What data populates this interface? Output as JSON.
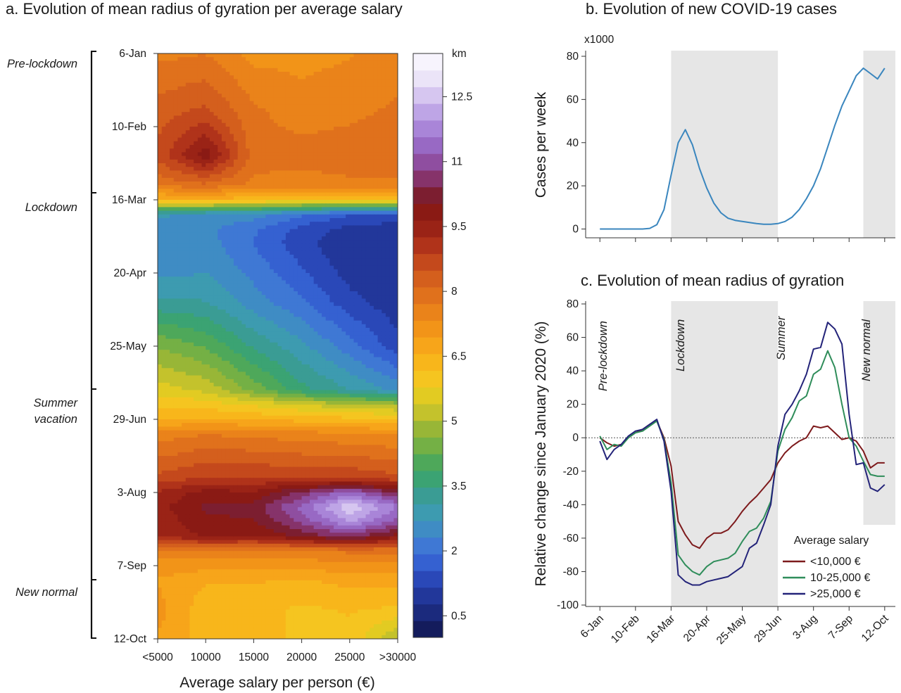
{
  "chart_data": [
    {
      "id": "a",
      "type": "heatmap",
      "title": "a. Evolution of mean radius of gyration per average salary",
      "xlabel": "Average salary per person (€)",
      "x_ticks": [
        "<5000",
        "10000",
        "15000",
        "20000",
        "25000",
        ">30000"
      ],
      "x_values": [
        5000,
        10000,
        15000,
        20000,
        25000,
        30000
      ],
      "xlim": [
        5000,
        30000
      ],
      "y_ticks": [
        "6-Jan",
        "10-Feb",
        "16-Mar",
        "20-Apr",
        "25-May",
        "29-Jun",
        "3-Aug",
        "7-Sep",
        "12-Oct"
      ],
      "periods": [
        {
          "label": "Pre-lockdown",
          "from_week": 0,
          "to_week": 10
        },
        {
          "label": "Lockdown",
          "from_week": 10,
          "to_week": 25
        },
        {
          "label": "Summer vacation",
          "from_week": 25,
          "to_week": 34
        },
        {
          "label": "New normal",
          "from_week": 34,
          "to_week": 40
        }
      ],
      "colorbar": {
        "unit": "km",
        "ticks": [
          0.5,
          2,
          3.5,
          5,
          6.5,
          8,
          9.5,
          11,
          12.5
        ],
        "range": [
          0,
          13.5
        ],
        "colors": [
          "#141c5c",
          "#1b2a7d",
          "#22379a",
          "#2a48b8",
          "#3561d1",
          "#3f78d4",
          "#3f8cc4",
          "#3d9bb0",
          "#3a9c94",
          "#3ba373",
          "#4ea85a",
          "#74b045",
          "#98b637",
          "#c4c22c",
          "#e2cb22",
          "#f5c520",
          "#f8b61b",
          "#f7a51a",
          "#f29418",
          "#ea831a",
          "#e0711c",
          "#d45f1d",
          "#c4491c",
          "#b0331a",
          "#9a2316",
          "#8a1a14",
          "#7c1e30",
          "#86336a",
          "#8f4ea0",
          "#9869c4",
          "#a985d8",
          "#bea5e6",
          "#d6c6f0",
          "#ebe4f8",
          "#f7f4fd"
        ]
      },
      "weekly_profiles": {
        "weeks": [
          0,
          4,
          7,
          9,
          10,
          11,
          12,
          13,
          15,
          17,
          20,
          23,
          24,
          25,
          26,
          29,
          30,
          31,
          32,
          33,
          34,
          36,
          38,
          40
        ],
        "values_by_salary": [
          [
            7.6,
            8.3,
            8.6,
            7.8,
            6.4,
            2.8,
            2.4,
            2.5,
            2.6,
            3.2,
            4.6,
            5.6,
            6.1,
            6.5,
            7.5,
            8.6,
            9.3,
            9.5,
            9.4,
            9.3,
            7.5,
            6.9,
            7.1,
            6.9
          ],
          [
            7.7,
            8.6,
            9.9,
            8.0,
            6.5,
            2.6,
            2.4,
            2.5,
            2.7,
            3.1,
            4.2,
            5.3,
            6.0,
            6.6,
            7.7,
            8.9,
            9.8,
            10.1,
            9.9,
            9.7,
            7.6,
            6.6,
            6.3,
            6.4
          ],
          [
            7.2,
            7.8,
            7.9,
            7.6,
            6.3,
            2.5,
            2.0,
            1.9,
            2.2,
            2.5,
            3.4,
            4.5,
            5.7,
            6.5,
            7.6,
            8.9,
            9.7,
            10.2,
            10.0,
            9.6,
            7.6,
            6.6,
            6.3,
            6.3
          ],
          [
            7.2,
            7.5,
            7.9,
            7.5,
            6.2,
            2.0,
            1.4,
            1.3,
            1.6,
            2.0,
            2.8,
            3.6,
            5.4,
            6.4,
            7.5,
            8.8,
            10.5,
            11.3,
            10.9,
            10.1,
            7.6,
            6.5,
            6.1,
            6.1
          ],
          [
            7.3,
            7.6,
            8.0,
            7.6,
            6.2,
            1.6,
            1.0,
            0.8,
            1.0,
            1.3,
            2.1,
            3.1,
            5.1,
            6.3,
            7.4,
            8.8,
            11.4,
            12.7,
            12.0,
            10.6,
            7.8,
            6.7,
            6.2,
            6.1
          ],
          [
            7.5,
            7.8,
            8.1,
            7.6,
            6.1,
            1.5,
            0.9,
            0.8,
            0.8,
            0.9,
            1.3,
            2.6,
            4.9,
            6.2,
            7.3,
            8.6,
            10.3,
            11.6,
            11.0,
            9.8,
            7.8,
            6.7,
            6.1,
            5.0
          ]
        ]
      }
    },
    {
      "id": "b",
      "type": "line",
      "title": "b. Evolution of new COVID-19 cases",
      "ylabel": "Cases per week",
      "y_multiplier": "x1000",
      "ylim": [
        0,
        80
      ],
      "y_ticks": [
        0,
        20,
        40,
        60,
        80
      ],
      "xlim": [
        -2,
        41.5
      ],
      "shaded_weeks": [
        [
          10,
          25
        ],
        [
          37,
          41.5
        ]
      ],
      "series": [
        {
          "color": "#3a86be",
          "x": [
            0,
            2,
            4,
            6,
            7,
            8,
            9,
            10,
            11,
            12,
            13,
            14,
            15,
            16,
            17,
            18,
            19,
            20,
            21,
            22,
            23,
            24,
            25,
            26,
            27,
            28,
            29,
            30,
            31,
            32,
            33,
            34,
            35,
            36,
            37,
            38,
            39,
            40
          ],
          "values": [
            0,
            0,
            0,
            0,
            0.3,
            2,
            9,
            25,
            40,
            46,
            39,
            28,
            19,
            12,
            7.5,
            5,
            4,
            3.5,
            3,
            2.5,
            2.2,
            2.2,
            2.5,
            3.5,
            5.5,
            9,
            14,
            20,
            28,
            38,
            48,
            57,
            64,
            71,
            74.5,
            72,
            69.5,
            74.5
          ]
        }
      ]
    },
    {
      "id": "c",
      "type": "line",
      "title": "c. Evolution of mean radius of gyration",
      "ylabel": "Relative change since January 2020 (%)",
      "ylim": [
        -100,
        80
      ],
      "y_ticks": [
        -100,
        -80,
        -60,
        -40,
        -20,
        0,
        20,
        40,
        60,
        80
      ],
      "xlim": [
        -2,
        41.5
      ],
      "x_ticks": [
        "6-Jan",
        "10-Feb",
        "16-Mar",
        "20-Apr",
        "25-May",
        "29-Jun",
        "3-Aug",
        "7-Sep",
        "12-Oct"
      ],
      "shaded_weeks": [
        [
          10,
          25
        ],
        [
          37,
          41.5
        ]
      ],
      "zero_line": true,
      "periods": [
        "Pre-lockdown",
        "Lockdown",
        "Summer",
        "New normal"
      ],
      "legend": {
        "title": "Average salary",
        "position": "bottom-right"
      },
      "series": [
        {
          "name": "<10,000 €",
          "color": "#7d1a1c",
          "values": [
            0,
            -3,
            -5,
            -4,
            0,
            3,
            5,
            8,
            10,
            0,
            -17,
            -50,
            -58,
            -64,
            -66,
            -60,
            -57,
            -57,
            -55,
            -50,
            -44,
            -39,
            -35,
            -30,
            -25,
            -15,
            -9,
            -5,
            -2,
            0,
            7,
            6,
            7,
            3,
            -1,
            0,
            -2,
            -8,
            -18,
            -15,
            -15
          ]
        },
        {
          "name": "10-25,000 €",
          "color": "#2f8d5a",
          "values": [
            1,
            -7,
            -4,
            -5,
            0,
            3,
            4,
            7,
            10,
            -1,
            -27,
            -70,
            -76,
            -80,
            -82,
            -77,
            -74,
            -73,
            -72,
            -69,
            -62,
            -56,
            -54,
            -48,
            -38,
            -8,
            5,
            12,
            22,
            25,
            38,
            41,
            52,
            42,
            20,
            0,
            -5,
            -14,
            -22,
            -23,
            -23
          ]
        },
        {
          "name": ">25,000 €",
          "color": "#232379",
          "values": [
            -2,
            -13,
            -7,
            -4,
            1,
            4,
            5,
            8,
            11,
            -2,
            -32,
            -82,
            -86,
            -88,
            -88,
            -86,
            -85,
            -84,
            -83,
            -80,
            -77,
            -66,
            -63,
            -52,
            -40,
            -5,
            14,
            20,
            28,
            38,
            53,
            54,
            69,
            65,
            56,
            14,
            -16,
            -15,
            -30,
            -32,
            -28
          ]
        }
      ]
    }
  ]
}
